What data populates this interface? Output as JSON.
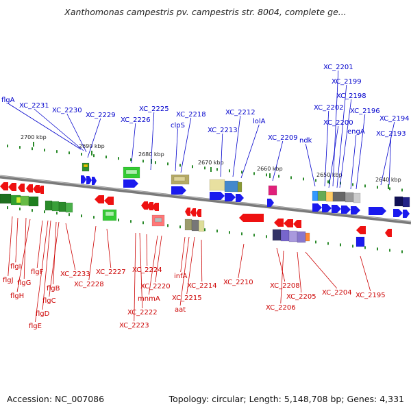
{
  "header": {
    "title": "Xanthomonas campestris pv. campestris str. 8004, complete ge..."
  },
  "footer": {
    "accession": "Accession: NC_007086",
    "summary": "Topology: circular; Length: 5,148,708 bp; Genes: 4,331"
  },
  "colors": {
    "top_labels": "#0000cc",
    "bottom_labels": "#cc0000",
    "backbone": "#7a7a7a"
  },
  "ticks": [
    "2700 kbp",
    "2690 kbp",
    "2680 kbp",
    "2670 kbp",
    "2660 kbp",
    "2650 kbp",
    "2640 kbp"
  ],
  "top_genes": [
    "flgA",
    "XC_2231",
    "XC_2230",
    "XC_2229",
    "XC_2226",
    "XC_2225",
    "clpS",
    "XC_2218",
    "XC_2213",
    "XC_2212",
    "lolA",
    "XC_2209",
    "ndk",
    "XC_2202",
    "XC_2201",
    "XC_2199",
    "XC_2198",
    "XC_2200",
    "engA",
    "XC_2196",
    "XC_2194",
    "XC_2193"
  ],
  "bottom_genes": [
    "flgI",
    "flgJ",
    "flgG",
    "flgH",
    "flgF",
    "flgB",
    "flgC",
    "flgD",
    "flgE",
    "XC_2233",
    "XC_2228",
    "XC_2227",
    "XC_2224",
    "XC_2220",
    "mnmA",
    "XC_2222",
    "XC_2223",
    "infA",
    "XC_2215",
    "aat",
    "XC_2214",
    "XC_2210",
    "XC_2208",
    "XC_2206",
    "XC_2205",
    "XC_2204",
    "XC_2195"
  ]
}
